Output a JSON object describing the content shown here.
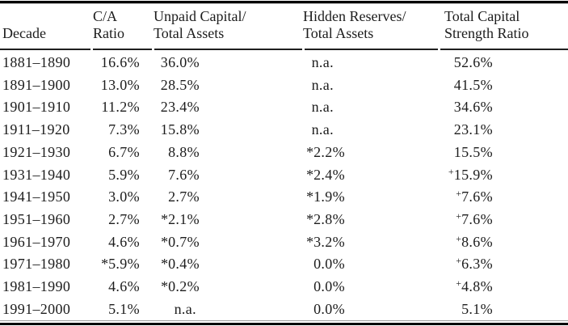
{
  "table": {
    "columns": [
      {
        "id": "decade",
        "header_line1": "",
        "header_line2": "Decade"
      },
      {
        "id": "ca",
        "header_line1": "C/A",
        "header_line2": "Ratio"
      },
      {
        "id": "unpaid",
        "header_line1": "Unpaid Capital/",
        "header_line2": "Total Assets"
      },
      {
        "id": "hidden",
        "header_line1": "Hidden Reserves/",
        "header_line2": "Total Assets"
      },
      {
        "id": "total",
        "header_line1": "Total Capital",
        "header_line2": "Strength Ratio"
      }
    ],
    "rows": [
      {
        "decade": "1881–1890",
        "ca": "16.6%",
        "unpaid": "36.0%",
        "hidden": "n.a.",
        "total": "52.6%"
      },
      {
        "decade": "1891–1900",
        "ca": "13.0%",
        "unpaid": "28.5%",
        "hidden": "n.a.",
        "total": "41.5%"
      },
      {
        "decade": "1901–1910",
        "ca": "11.2%",
        "unpaid": "23.4%",
        "hidden": "n.a.",
        "total": "34.6%"
      },
      {
        "decade": "1911–1920",
        "ca": "7.3%",
        "unpaid": "15.8%",
        "hidden": "n.a.",
        "total": "23.1%"
      },
      {
        "decade": "1921–1930",
        "ca": "6.7%",
        "unpaid": "8.8%",
        "hidden": "*2.2%",
        "total": "15.5%"
      },
      {
        "decade": "1931–1940",
        "ca": "5.9%",
        "unpaid": "7.6%",
        "hidden": "*2.4%",
        "total": "+15.9%"
      },
      {
        "decade": "1941–1950",
        "ca": "3.0%",
        "unpaid": "2.7%",
        "hidden": "*1.9%",
        "total": "+7.6%"
      },
      {
        "decade": "1951–1960",
        "ca": "2.7%",
        "unpaid": "*2.1%",
        "hidden": "*2.8%",
        "total": "+7.6%"
      },
      {
        "decade": "1961–1970",
        "ca": "4.6%",
        "unpaid": "*0.7%",
        "hidden": "*3.2%",
        "total": "+8.6%"
      },
      {
        "decade": "1971–1980",
        "ca": "*5.9%",
        "unpaid": "*0.4%",
        "hidden": "0.0%",
        "total": "+6.3%"
      },
      {
        "decade": "1981–1990",
        "ca": "4.6%",
        "unpaid": "*0.2%",
        "hidden": "0.0%",
        "total": "+4.8%"
      },
      {
        "decade": "1991–2000",
        "ca": "5.1%",
        "unpaid": "n.a.",
        "hidden": "0.0%",
        "total": "5.1%"
      }
    ],
    "markers": {
      "estimate_marker": "*",
      "superscript_marker": "+",
      "not_available": "n.a."
    }
  },
  "colors": {
    "background": "#ffffff",
    "text": "#1c1c1c",
    "rule_thick": "#050505",
    "rule_thin": "#1f1f1f",
    "rule_gray": "#9a9a9a"
  }
}
